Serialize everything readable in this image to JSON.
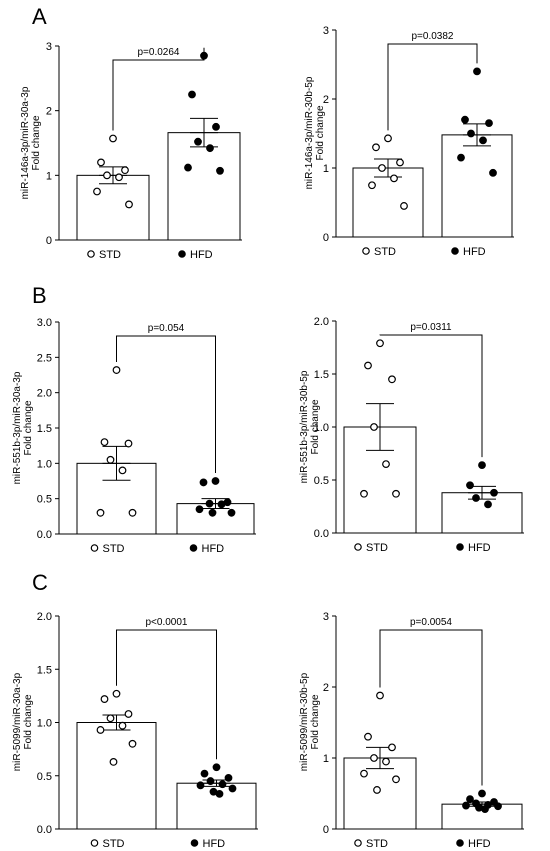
{
  "panels": [
    {
      "letter": "A"
    },
    {
      "letter": "B"
    },
    {
      "letter": "C"
    }
  ],
  "chart_data": [
    {
      "type": "bar",
      "panel": "A",
      "categories": [
        "STD",
        "HFD"
      ],
      "ylabel": [
        "miR-146a-3p/miR-30a-3p",
        "Fold change"
      ],
      "ylim": [
        0,
        3
      ],
      "yticks": [
        "0",
        "1",
        "2",
        "3"
      ],
      "ytick_values": [
        0,
        1,
        2,
        3
      ],
      "series": [
        {
          "name": "STD",
          "mean": 1.0,
          "sem": 0.13,
          "points": [
            1.57,
            1.2,
            1.08,
            1.0,
            0.97,
            0.75,
            0.55
          ]
        },
        {
          "name": "HFD",
          "mean": 1.66,
          "sem": 0.22,
          "points": [
            2.85,
            2.25,
            1.75,
            1.52,
            1.42,
            1.12,
            1.07
          ]
        }
      ],
      "pvalue": "p=0.0264"
    },
    {
      "type": "bar",
      "panel": "A",
      "categories": [
        "STD",
        "HFD"
      ],
      "ylabel": [
        "miR-146a-3p/miR-30b-5p",
        "Fold change"
      ],
      "ylim": [
        0,
        3
      ],
      "yticks": [
        "0",
        "1",
        "2",
        "3"
      ],
      "ytick_values": [
        0,
        1,
        2,
        3
      ],
      "series": [
        {
          "name": "STD",
          "mean": 1.0,
          "sem": 0.13,
          "points": [
            1.43,
            1.3,
            1.08,
            1.0,
            0.85,
            0.75,
            0.45
          ]
        },
        {
          "name": "HFD",
          "mean": 1.48,
          "sem": 0.16,
          "points": [
            2.4,
            1.7,
            1.65,
            1.5,
            1.4,
            1.15,
            0.93
          ]
        }
      ],
      "pvalue": "p=0.0382"
    },
    {
      "type": "bar",
      "panel": "B",
      "categories": [
        "STD",
        "HFD"
      ],
      "ylabel": [
        "miR-551b-3p/miR-30a-3p",
        "Fold change"
      ],
      "ylim": [
        0,
        3
      ],
      "yticks": [
        "0.0",
        "0.5",
        "1.0",
        "1.5",
        "2.0",
        "2.5",
        "3.0"
      ],
      "ytick_values": [
        0,
        0.5,
        1,
        1.5,
        2,
        2.5,
        3
      ],
      "series": [
        {
          "name": "STD",
          "mean": 1.0,
          "sem": 0.24,
          "points": [
            2.32,
            1.3,
            1.28,
            1.05,
            0.9,
            0.3,
            0.3
          ]
        },
        {
          "name": "HFD",
          "mean": 0.43,
          "sem": 0.07,
          "points": [
            0.75,
            0.73,
            0.45,
            0.43,
            0.42,
            0.35,
            0.3,
            0.3
          ]
        }
      ],
      "pvalue": "p=0.054"
    },
    {
      "type": "bar",
      "panel": "B",
      "categories": [
        "STD",
        "HFD"
      ],
      "ylabel": [
        "miR-551b-3p/miR-30b-5p",
        "Fold change"
      ],
      "ylim": [
        0,
        2
      ],
      "yticks": [
        "0.0",
        "0.5",
        "1.0",
        "1.5",
        "2.0"
      ],
      "ytick_values": [
        0,
        0.5,
        1,
        1.5,
        2
      ],
      "series": [
        {
          "name": "STD",
          "mean": 1.0,
          "sem": 0.22,
          "points": [
            1.79,
            1.58,
            1.45,
            1.0,
            0.65,
            0.37,
            0.37
          ]
        },
        {
          "name": "HFD",
          "mean": 0.38,
          "sem": 0.06,
          "points": [
            0.64,
            0.45,
            0.38,
            0.33,
            0.27
          ]
        }
      ],
      "pvalue": "p=0.0311"
    },
    {
      "type": "bar",
      "panel": "C",
      "categories": [
        "STD",
        "HFD"
      ],
      "ylabel": [
        "miR-5099/miR-30a-3p",
        "Fold change"
      ],
      "ylim": [
        0,
        2
      ],
      "yticks": [
        "0.0",
        "0.5",
        "1.0",
        "1.5",
        "2.0"
      ],
      "ytick_values": [
        0,
        0.5,
        1,
        1.5,
        2
      ],
      "series": [
        {
          "name": "STD",
          "mean": 1.0,
          "sem": 0.07,
          "points": [
            1.27,
            1.22,
            1.08,
            1.04,
            0.97,
            0.93,
            0.8,
            0.63
          ]
        },
        {
          "name": "HFD",
          "mean": 0.43,
          "sem": 0.03,
          "points": [
            0.58,
            0.52,
            0.48,
            0.45,
            0.42,
            0.41,
            0.38,
            0.35,
            0.33
          ]
        }
      ],
      "pvalue": "p<0.0001"
    },
    {
      "type": "bar",
      "panel": "C",
      "categories": [
        "STD",
        "HFD"
      ],
      "ylabel": [
        "miR-5099/miR-30b-5p",
        "Fold change"
      ],
      "ylim": [
        0,
        3
      ],
      "yticks": [
        "0",
        "1",
        "2",
        "3"
      ],
      "ytick_values": [
        0,
        1,
        2,
        3
      ],
      "series": [
        {
          "name": "STD",
          "mean": 1.0,
          "sem": 0.15,
          "points": [
            1.88,
            1.3,
            1.15,
            1.0,
            0.95,
            0.78,
            0.7,
            0.55
          ]
        },
        {
          "name": "HFD",
          "mean": 0.35,
          "sem": 0.03,
          "points": [
            0.5,
            0.42,
            0.38,
            0.36,
            0.34,
            0.33,
            0.32,
            0.3,
            0.28
          ]
        }
      ],
      "pvalue": "p=0.0054"
    }
  ]
}
